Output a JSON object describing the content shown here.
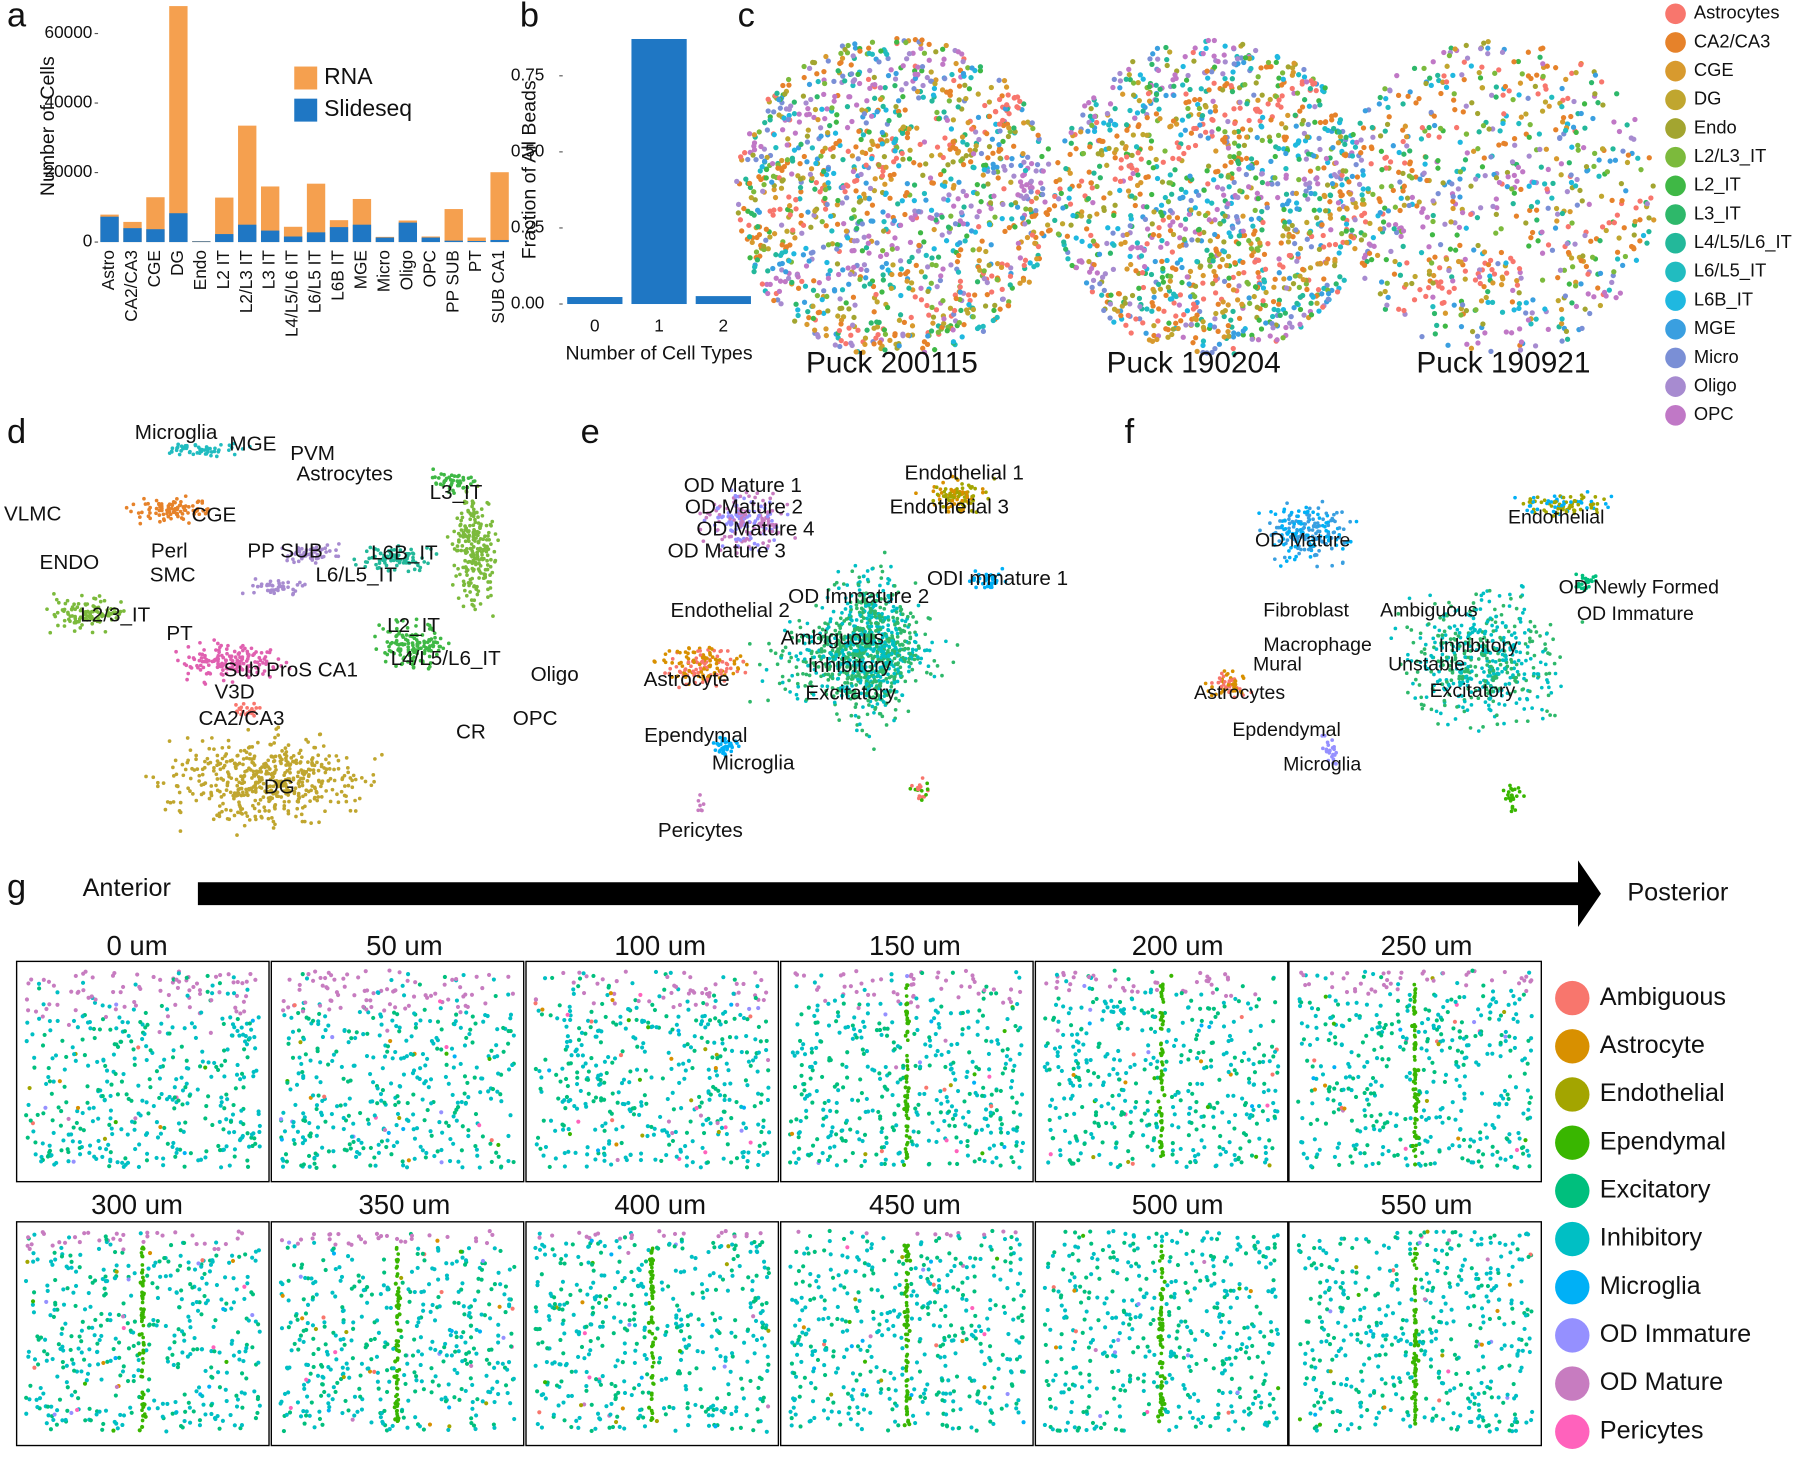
{
  "chart_data": [
    {
      "type": "bar",
      "label": "a",
      "ylabel": "Number of Cells",
      "categories": [
        "Astro",
        "CA2/CA3",
        "CGE",
        "DG",
        "Endo",
        "L2 IT",
        "L2/L3 IT",
        "L3 IT",
        "L4/L5/L6 IT",
        "L6/L5 IT",
        "L6B IT",
        "MGE",
        "Micro",
        "Oligo",
        "OPC",
        "PP SUB",
        "PT",
        "SUB CA1"
      ],
      "series": [
        {
          "name": "RNA",
          "color": "#f5a04f",
          "values": [
            7900,
            5800,
            12900,
            67900,
            300,
            12800,
            33500,
            16000,
            4400,
            16800,
            6300,
            12400,
            1500,
            6200,
            1600,
            9500,
            1300,
            20100
          ]
        },
        {
          "name": "Slideseq",
          "color": "#1f77c4",
          "values": [
            7300,
            4000,
            3700,
            8300,
            200,
            2300,
            5000,
            3300,
            1600,
            2800,
            4300,
            5000,
            1300,
            5600,
            1300,
            400,
            300,
            600
          ]
        }
      ],
      "ylim": [
        0,
        68000
      ],
      "yticks": [
        0,
        20000,
        40000,
        60000
      ]
    },
    {
      "type": "bar",
      "label": "b",
      "xlabel": "Number of Cell Types",
      "ylabel": "Fraction of All Beads",
      "categories": [
        "0",
        "1",
        "2"
      ],
      "values": [
        0.023,
        0.871,
        0.026
      ],
      "color": "#1f77c4",
      "ylim": [
        0,
        0.9
      ],
      "yticks": [
        {
          "value": 0,
          "label": "0.00"
        },
        {
          "value": 0.25,
          "label": "0.25"
        },
        {
          "value": 0.5,
          "label": "0.50"
        },
        {
          "value": 0.75,
          "label": "0.75"
        }
      ]
    }
  ],
  "panels": {
    "c": {
      "label": "c",
      "pucks": [
        "Puck 200115",
        "Puck 190204",
        "Puck 190921"
      ],
      "legend": [
        {
          "name": "Astrocytes",
          "color": "#f8766d"
        },
        {
          "name": "CA2/CA3",
          "color": "#e6822a"
        },
        {
          "name": "CGE",
          "color": "#d89a2e"
        },
        {
          "name": "DG",
          "color": "#c0a62f"
        },
        {
          "name": "Endo",
          "color": "#a3a530"
        },
        {
          "name": "L2/L3_IT",
          "color": "#7cba3c"
        },
        {
          "name": "L2_IT",
          "color": "#3fb845"
        },
        {
          "name": "L3_IT",
          "color": "#2eb86a"
        },
        {
          "name": "L4/L5/L6_IT",
          "color": "#23b89a"
        },
        {
          "name": "L6/L5_IT",
          "color": "#21bcc0"
        },
        {
          "name": "L6B_IT",
          "color": "#1fb8e0"
        },
        {
          "name": "MGE",
          "color": "#3a9fe0"
        },
        {
          "name": "Micro",
          "color": "#7a8fd6"
        },
        {
          "name": "Oligo",
          "color": "#a78bd0"
        },
        {
          "name": "OPC",
          "color": "#c078c6"
        }
      ]
    },
    "d": {
      "label": "d",
      "clusters": [
        "Microglia",
        "MGE",
        "PVM",
        "Astrocytes",
        "VLMC",
        "CGE",
        "L3_IT",
        "ENDO",
        "Perl",
        "SMC",
        "PP SUB",
        "L6B_IT",
        "L6/L5_IT",
        "L2/3_IT",
        "L2_IT",
        "PT",
        "L4/L5/L6_IT",
        "Sub ProS CA1",
        "Oligo",
        "V3D",
        "OPC",
        "CA2/CA3",
        "CR",
        "DG"
      ]
    },
    "e": {
      "label": "e",
      "clusters": [
        "OD Mature 1",
        "OD Mature 2",
        "OD Mature 4",
        "OD Mature 3",
        "Endothelial 1",
        "Endothelial 3",
        "ODI mmature  1",
        "OD Immature 2",
        "Endothelial 2",
        "Ambiguous",
        "Inhibitory",
        "Astrocyte",
        "Excitatory",
        "Ependymal",
        "Microglia",
        "Pericytes"
      ]
    },
    "f": {
      "label": "f",
      "clusters": [
        "OD Mature",
        "Endothelial",
        "OD Newly Formed",
        "OD Immature",
        "Fibroblast",
        "Ambiguous",
        "Inhibitory",
        "Macrophage",
        "Mural",
        "Unstable",
        "Astrocytes",
        "Excitatory",
        "Epdendymal",
        "Microglia"
      ]
    },
    "g": {
      "label": "g",
      "start": "Anterior",
      "end": "Posterior",
      "slices": [
        "0 um",
        "50 um",
        "100 um",
        "150 um",
        "200 um",
        "250 um",
        "300 um",
        "350 um",
        "400 um",
        "450 um",
        "500 um",
        "550 um"
      ],
      "legend": [
        {
          "name": "Ambiguous",
          "color": "#f8766d"
        },
        {
          "name": "Astrocyte",
          "color": "#d89000"
        },
        {
          "name": "Endothelial",
          "color": "#a3a500"
        },
        {
          "name": "Ependymal",
          "color": "#39b600"
        },
        {
          "name": "Excitatory",
          "color": "#00bf7d"
        },
        {
          "name": "Inhibitory",
          "color": "#00bfc4"
        },
        {
          "name": "Microglia",
          "color": "#00b0f6"
        },
        {
          "name": "OD Immature",
          "color": "#9590ff"
        },
        {
          "name": "OD Mature",
          "color": "#c77cc0"
        },
        {
          "name": "Pericytes",
          "color": "#ff62bc"
        }
      ]
    }
  }
}
